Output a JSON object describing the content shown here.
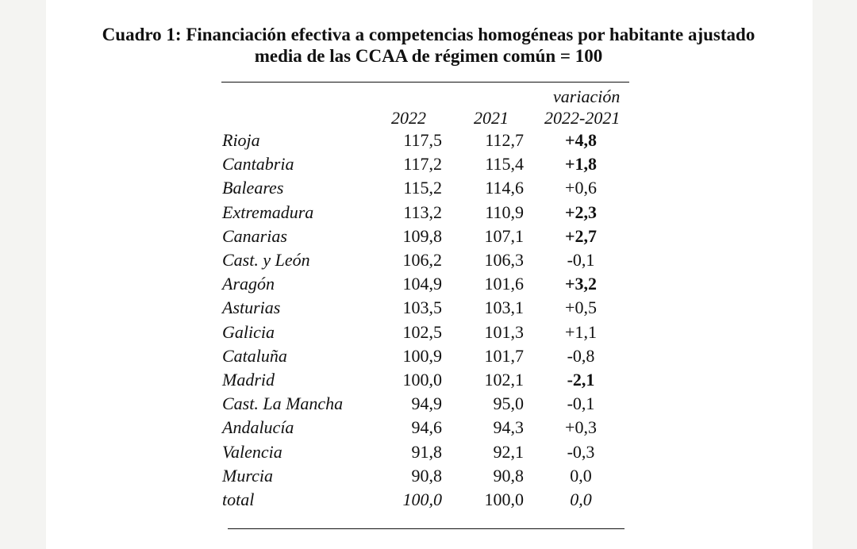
{
  "title": {
    "line1": "Cuadro 1: Financiación efectiva a competencias homogéneas por habitante ajustado",
    "line2": "media de las CCAA de régimen común = 100"
  },
  "columns": {
    "year_2022": "2022",
    "year_2021": "2021",
    "variation_line1": "variación",
    "variation_line2": "2022-2021"
  },
  "rows": [
    {
      "region": "Rioja",
      "v2022": "117,5",
      "v2021": "112,7",
      "variation": "+4,8",
      "bold": true
    },
    {
      "region": "Cantabria",
      "v2022": "117,2",
      "v2021": "115,4",
      "variation": "+1,8",
      "bold": true
    },
    {
      "region": "Baleares",
      "v2022": "115,2",
      "v2021": "114,6",
      "variation": "+0,6",
      "bold": false
    },
    {
      "region": "Extremadura",
      "v2022": "113,2",
      "v2021": "110,9",
      "variation": "+2,3",
      "bold": true
    },
    {
      "region": "Canarias",
      "v2022": "109,8",
      "v2021": "107,1",
      "variation": "+2,7",
      "bold": true
    },
    {
      "region": "Cast. y León",
      "v2022": "106,2",
      "v2021": "106,3",
      "variation": "-0,1",
      "bold": false
    },
    {
      "region": "Aragón",
      "v2022": "104,9",
      "v2021": "101,6",
      "variation": "+3,2",
      "bold": true
    },
    {
      "region": "Asturias",
      "v2022": "103,5",
      "v2021": "103,1",
      "variation": "+0,5",
      "bold": false
    },
    {
      "region": "Galicia",
      "v2022": "102,5",
      "v2021": "101,3",
      "variation": "+1,1",
      "bold": false
    },
    {
      "region": "Cataluña",
      "v2022": "100,9",
      "v2021": "101,7",
      "variation": "-0,8",
      "bold": false
    },
    {
      "region": "Madrid",
      "v2022": "100,0",
      "v2021": "102,1",
      "variation": "-2,1",
      "bold": true
    },
    {
      "region": "Cast. La Mancha",
      "v2022": "94,9",
      "v2021": "95,0",
      "variation": "-0,1",
      "bold": false
    },
    {
      "region": "Andalucía",
      "v2022": "94,6",
      "v2021": "94,3",
      "variation": "+0,3",
      "bold": false
    },
    {
      "region": "Valencia",
      "v2022": "91,8",
      "v2021": "92,1",
      "variation": "-0,3",
      "bold": false
    },
    {
      "region": "Murcia",
      "v2022": "90,8",
      "v2021": "90,8",
      "variation": "0,0",
      "bold": false
    },
    {
      "region": "total",
      "v2022": "100,0",
      "v2021": "100,0",
      "variation": "0,0",
      "bold": false,
      "total": true
    }
  ]
}
